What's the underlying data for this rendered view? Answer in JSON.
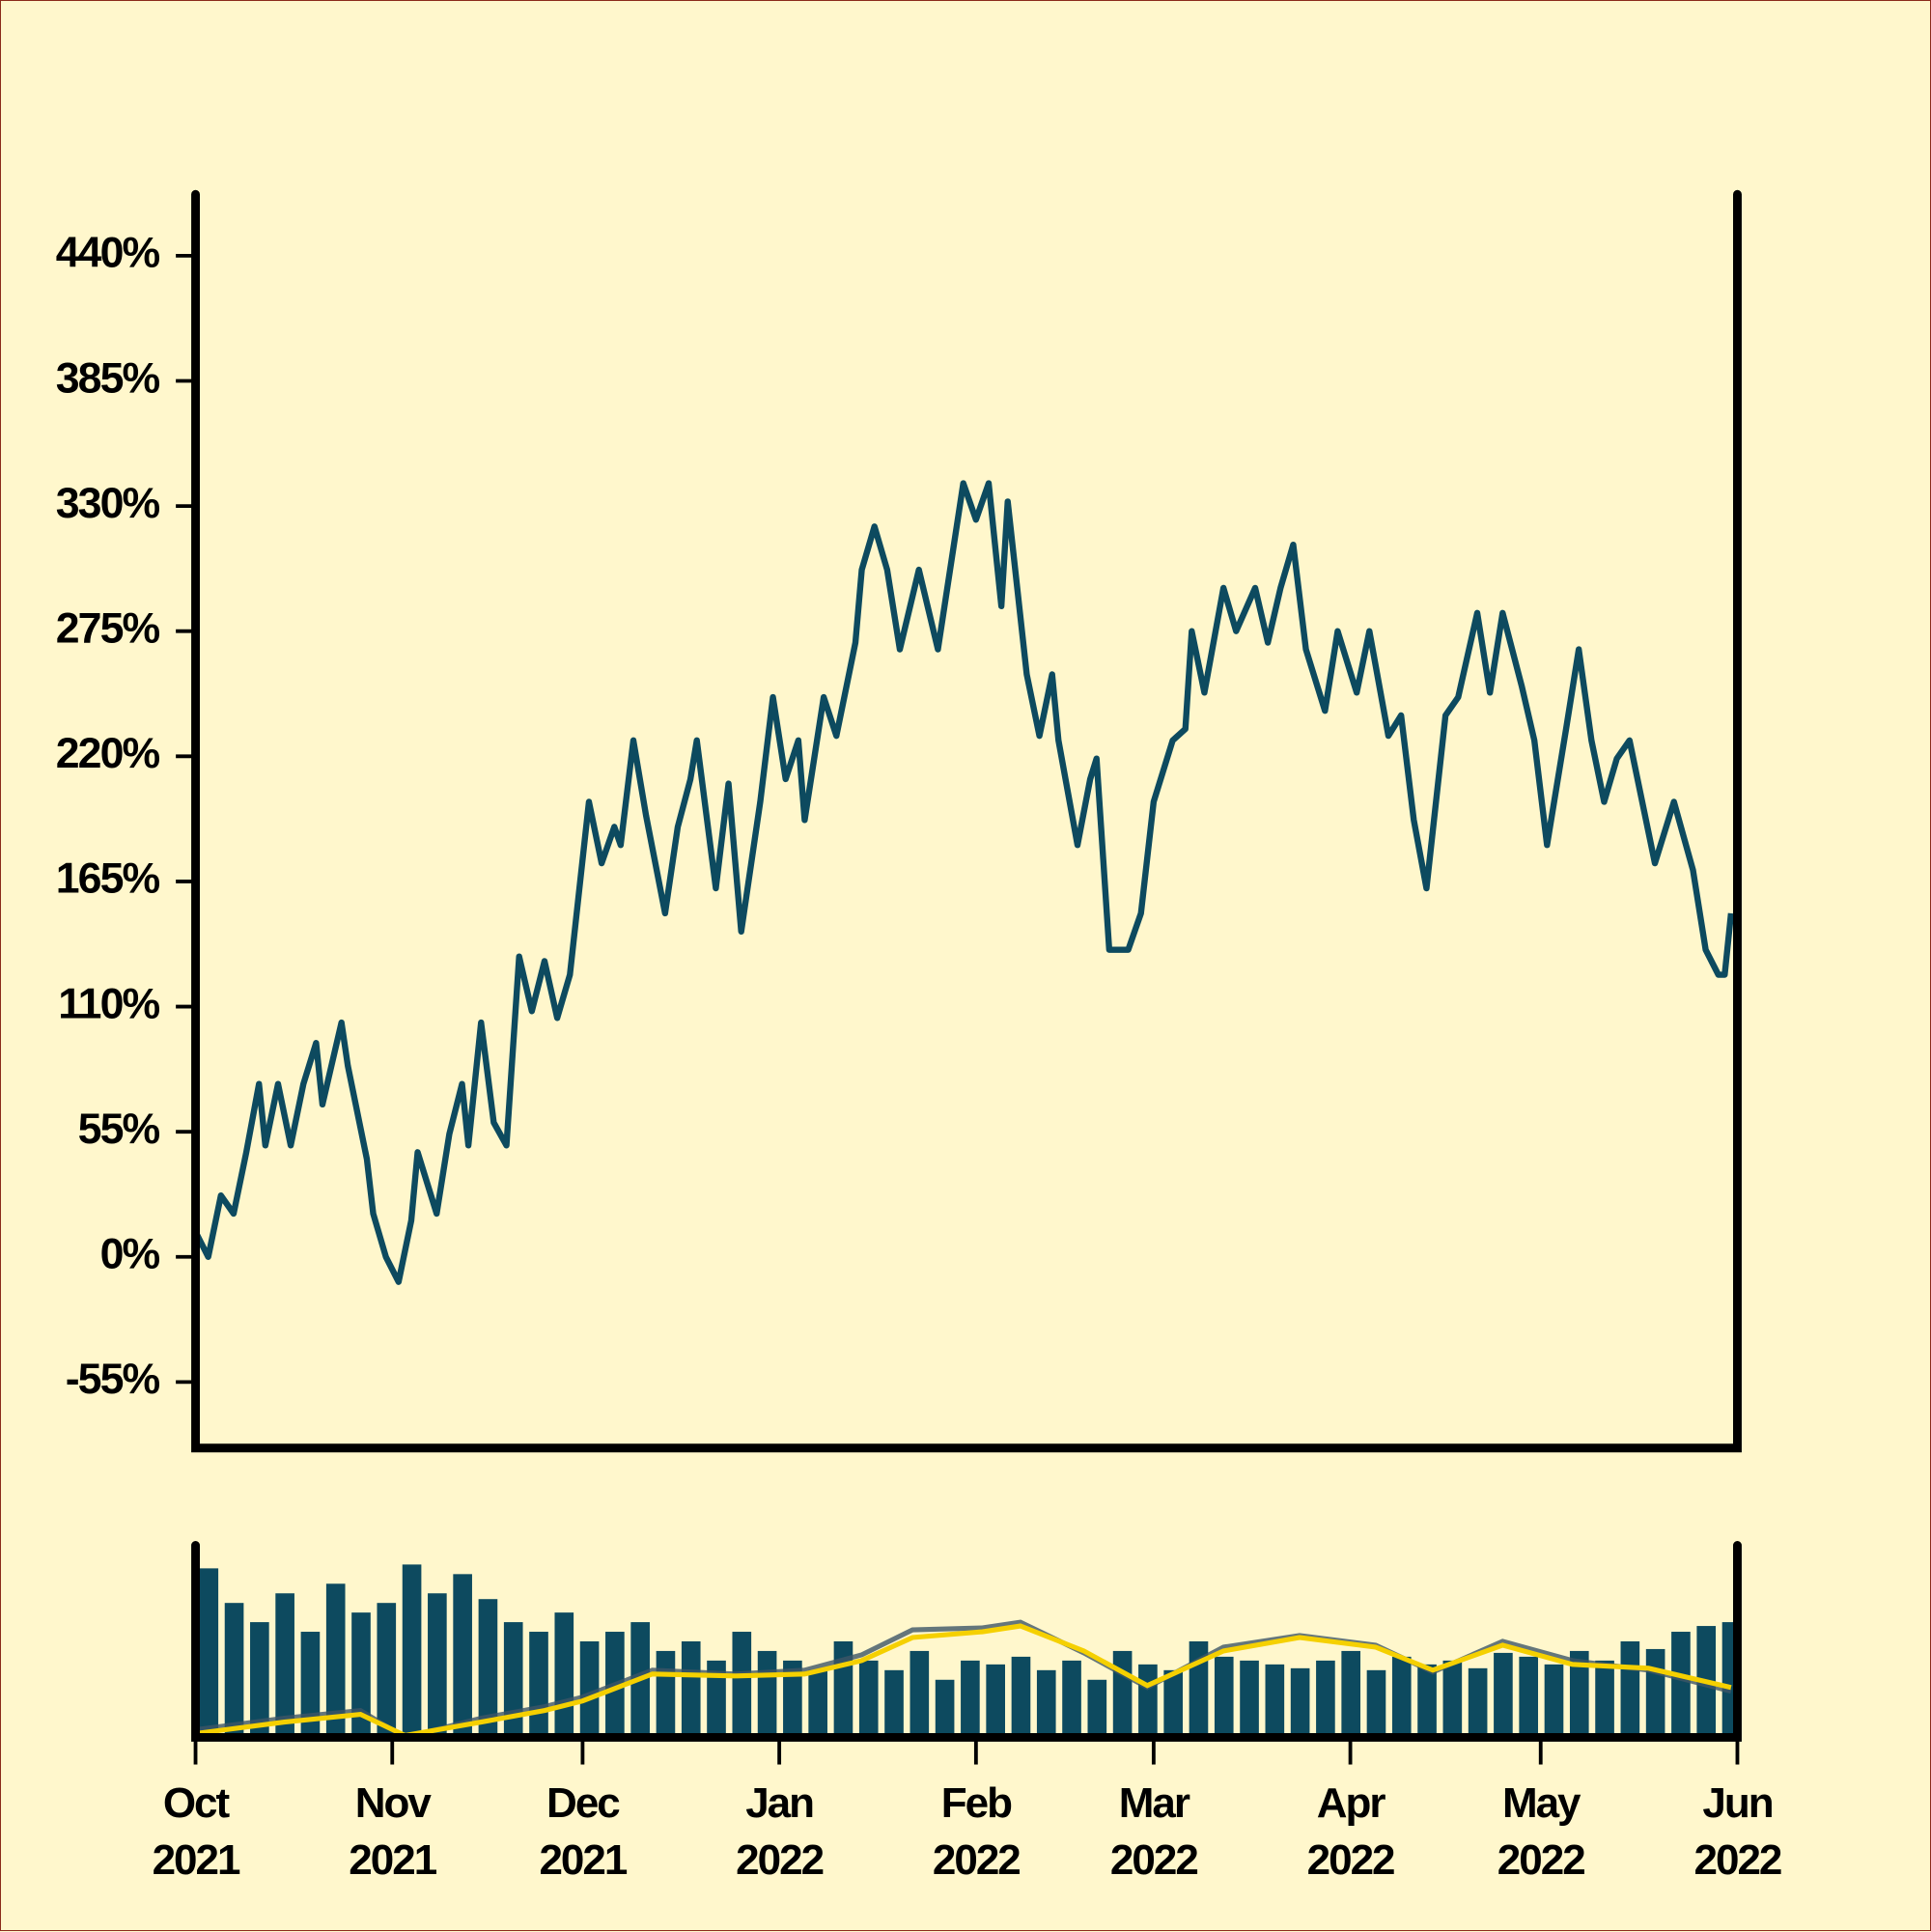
{
  "chart_data": [
    {
      "type": "line",
      "x": [
        "2021-10-01",
        "2021-10-03",
        "2021-10-05",
        "2021-10-07",
        "2021-10-09",
        "2021-10-11",
        "2021-10-12",
        "2021-10-14",
        "2021-10-16",
        "2021-10-18",
        "2021-10-20",
        "2021-10-21",
        "2021-10-24",
        "2021-10-25",
        "2021-10-28",
        "2021-10-29",
        "2021-10-31",
        "2021-11-02",
        "2021-11-04",
        "2021-11-05",
        "2021-11-08",
        "2021-11-10",
        "2021-11-12",
        "2021-11-13",
        "2021-11-15",
        "2021-11-17",
        "2021-11-19",
        "2021-11-21",
        "2021-11-23",
        "2021-11-25",
        "2021-11-27",
        "2021-11-29",
        "2021-12-02",
        "2021-12-04",
        "2021-12-06",
        "2021-12-07",
        "2021-12-09",
        "2021-12-11",
        "2021-12-14",
        "2021-12-16",
        "2021-12-18",
        "2021-12-19",
        "2021-12-22",
        "2021-12-24",
        "2021-12-26",
        "2021-12-29",
        "2021-12-31",
        "2022-01-02",
        "2022-01-04",
        "2022-01-05",
        "2022-01-08",
        "2022-01-10",
        "2022-01-13",
        "2022-01-14",
        "2022-01-16",
        "2022-01-18",
        "2022-01-20",
        "2022-01-23",
        "2022-01-26",
        "2022-01-30",
        "2022-02-01",
        "2022-02-03",
        "2022-02-05",
        "2022-02-06",
        "2022-02-09",
        "2022-02-11",
        "2022-02-13",
        "2022-02-14",
        "2022-02-17",
        "2022-02-19",
        "2022-02-20",
        "2022-02-22",
        "2022-02-25",
        "2022-02-27",
        "2022-03-01",
        "2022-03-04",
        "2022-03-06",
        "2022-03-07",
        "2022-03-09",
        "2022-03-12",
        "2022-03-14",
        "2022-03-17",
        "2022-03-19",
        "2022-03-21",
        "2022-03-23",
        "2022-03-25",
        "2022-03-28",
        "2022-03-30",
        "2022-04-02",
        "2022-04-04",
        "2022-04-07",
        "2022-04-09",
        "2022-04-11",
        "2022-04-13",
        "2022-04-16",
        "2022-04-18",
        "2022-04-21",
        "2022-04-23",
        "2022-04-25",
        "2022-04-28",
        "2022-04-30",
        "2022-05-02",
        "2022-05-05",
        "2022-05-07",
        "2022-05-09",
        "2022-05-11",
        "2022-05-13",
        "2022-05-15",
        "2022-05-19",
        "2022-05-22",
        "2022-05-25",
        "2022-05-27",
        "2022-05-29",
        "2022-05-30",
        "2022-05-31"
      ],
      "series": [
        {
          "color": "#0d4a5f",
          "values": [
            11,
            0,
            27,
            19,
            46,
            76,
            49,
            76,
            49,
            76,
            94,
            67,
            103,
            84,
            43,
            19,
            0,
            -11,
            16,
            46,
            19,
            54,
            76,
            49,
            103,
            59,
            49,
            132,
            108,
            130,
            105,
            124,
            200,
            173,
            189,
            181,
            227,
            194,
            151,
            189,
            210,
            227,
            162,
            208,
            143,
            200,
            246,
            210,
            227,
            192,
            246,
            229,
            270,
            302,
            321,
            302,
            267,
            302,
            267,
            340,
            324,
            340,
            286,
            332,
            256,
            229,
            256,
            227,
            181,
            210,
            219,
            135,
            135,
            151,
            200,
            227,
            232,
            275,
            248,
            294,
            275,
            294,
            270,
            294,
            313,
            267,
            240,
            275,
            248,
            275,
            229,
            238,
            192,
            162,
            238,
            246,
            283,
            248,
            283,
            251,
            227,
            181,
            232,
            267,
            227,
            200,
            219,
            227,
            173,
            200,
            170,
            135,
            124,
            124,
            151
          ]
        }
      ],
      "ylim": [
        -84,
        467
      ],
      "yticks": [
        {
          "value": -55,
          "label": "-55%"
        },
        {
          "value": 0,
          "label": "0%"
        },
        {
          "value": 55,
          "label": "55%"
        },
        {
          "value": 110,
          "label": "110%"
        },
        {
          "value": 165,
          "label": "165%"
        },
        {
          "value": 220,
          "label": "220%"
        },
        {
          "value": 275,
          "label": "275%"
        },
        {
          "value": 330,
          "label": "330%"
        },
        {
          "value": 385,
          "label": "385%"
        },
        {
          "value": 440,
          "label": "440%"
        }
      ],
      "xlim": [
        "2021-10-01",
        "2022-06-01"
      ]
    },
    {
      "type": "volume",
      "x": [
        "2021-10-01",
        "2021-10-05",
        "2021-10-09",
        "2021-10-13",
        "2021-10-17",
        "2021-10-21",
        "2021-10-25",
        "2021-10-29",
        "2021-11-02",
        "2021-11-06",
        "2021-11-10",
        "2021-11-14",
        "2021-11-18",
        "2021-11-22",
        "2021-11-26",
        "2021-11-30",
        "2021-12-04",
        "2021-12-08",
        "2021-12-12",
        "2021-12-16",
        "2021-12-20",
        "2021-12-24",
        "2021-12-28",
        "2022-01-01",
        "2022-01-05",
        "2022-01-09",
        "2022-01-13",
        "2022-01-17",
        "2022-01-21",
        "2022-01-25",
        "2022-01-29",
        "2022-02-02",
        "2022-02-06",
        "2022-02-10",
        "2022-02-14",
        "2022-02-18",
        "2022-02-22",
        "2022-02-26",
        "2022-03-02",
        "2022-03-06",
        "2022-03-10",
        "2022-03-14",
        "2022-03-18",
        "2022-03-22",
        "2022-03-26",
        "2022-03-30",
        "2022-04-03",
        "2022-04-07",
        "2022-04-11",
        "2022-04-15",
        "2022-04-19",
        "2022-04-23",
        "2022-04-27",
        "2022-05-01",
        "2022-05-05",
        "2022-05-09",
        "2022-05-13",
        "2022-05-17",
        "2022-05-21",
        "2022-05-25",
        "2022-05-29"
      ],
      "values": [
        88,
        70,
        60,
        75,
        55,
        80,
        65,
        70,
        90,
        75,
        85,
        72,
        60,
        55,
        65,
        50,
        55,
        60,
        45,
        50,
        40,
        55,
        45,
        40,
        35,
        50,
        40,
        35,
        45,
        30,
        40,
        38,
        42,
        35,
        40,
        30,
        45,
        38,
        35,
        50,
        42,
        40,
        38,
        36,
        40,
        45,
        35,
        42,
        38,
        40,
        36,
        44,
        42,
        38,
        45,
        40,
        50,
        46,
        55,
        58,
        60
      ],
      "color": "#0d4a5f",
      "lines": {
        "x": [
          "2021-10-01",
          "2021-10-15",
          "2021-10-27",
          "2021-11-03",
          "2021-11-15",
          "2021-11-25",
          "2021-12-01",
          "2021-12-12",
          "2021-12-25",
          "2022-01-05",
          "2022-01-14",
          "2022-01-22",
          "2022-02-02",
          "2022-02-08",
          "2022-02-18",
          "2022-02-28",
          "2022-03-12",
          "2022-03-24",
          "2022-04-05",
          "2022-04-14",
          "2022-04-25",
          "2022-05-06",
          "2022-05-18",
          "2022-05-31"
        ],
        "series": [
          {
            "color": "#3d5566",
            "values": [
              4,
              10,
              14,
              0,
              10,
              16,
              21,
              35,
              33,
              35,
              43,
              56,
              57,
              60,
              44,
              26,
              47,
              53,
              48,
              34,
              50,
              40,
              35,
              24
            ]
          },
          {
            "color": "#f5d000",
            "values": [
              2,
              8,
              12,
              1,
              8,
              14,
              19,
              33,
              32,
              33,
              40,
              52,
              55,
              58,
              45,
              27,
              45,
              52,
              47,
              35,
              48,
              38,
              36,
              26
            ]
          }
        ]
      },
      "ylim": [
        0,
        100
      ],
      "xlim": [
        "2021-10-01",
        "2022-06-01"
      ],
      "xticks": [
        {
          "value": "2021-10-01",
          "label": "Oct\n2021"
        },
        {
          "value": "2021-11-01",
          "label": "Nov\n2021"
        },
        {
          "value": "2021-12-01",
          "label": "Dec\n2021"
        },
        {
          "value": "2022-01-01",
          "label": "Jan\n2022"
        },
        {
          "value": "2022-02-01",
          "label": "Feb\n2022"
        },
        {
          "value": "2022-03-01",
          "label": "Mar\n2022"
        },
        {
          "value": "2022-04-01",
          "label": "Apr\n2022"
        },
        {
          "value": "2022-05-01",
          "label": "May\n2022"
        },
        {
          "value": "2022-06-01",
          "label": "Jun\n2022"
        }
      ]
    }
  ]
}
